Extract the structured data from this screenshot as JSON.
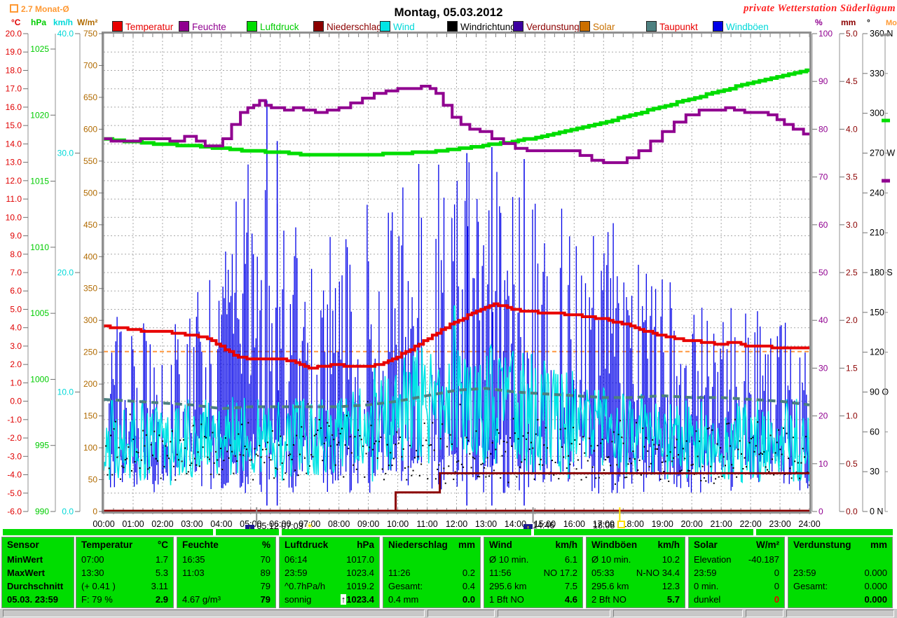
{
  "header": {
    "title": "Montag, 05.03.2012",
    "station": "private Wetterstation Süderlügum",
    "month_avg_label": "2.7 Monat-Ø",
    "month_avg_label_right": "Monat-Ø"
  },
  "axis_units": {
    "celsius": "°C",
    "hpa": "hPa",
    "kmh": "km/h",
    "wm2": "W/m²",
    "percent": "%",
    "mm": "mm",
    "degree": "°"
  },
  "legend": [
    {
      "label": "Temperatur",
      "text_color": "#e80000",
      "box_color": "#e80000"
    },
    {
      "label": "Feuchte",
      "text_color": "#900090",
      "box_color": "#900090"
    },
    {
      "label": "Luftdruck",
      "text_color": "#00cc00",
      "box_color": "#00dd00"
    },
    {
      "label": "Niederschlag",
      "text_color": "#8b0000",
      "box_color": "#8b0000"
    },
    {
      "label": "Wind",
      "text_color": "#00d8d8",
      "box_color": "#00e5e5"
    },
    {
      "label": "Windrichtung*",
      "text_color": "#000000",
      "box_color": "#000000"
    },
    {
      "label": "Verdunstung",
      "text_color": "#8b0000",
      "box_color": "#3c00a0"
    },
    {
      "label": "Solar",
      "text_color": "#c87000",
      "box_color": "#cc7000"
    },
    {
      "label": "Taupunkt",
      "text_color": "#e80000",
      "box_color": "#4d8080"
    },
    {
      "label": "Windböen",
      "text_color": "#00d8d8",
      "box_color": "#0000e8"
    }
  ],
  "astro": {
    "moonset_sunrise": "05:12 07:03",
    "moonrise": "14:46",
    "sunset": "18:08"
  },
  "chart_data": {
    "type": "line",
    "title": "Montag, 05.03.2012",
    "x_label": "Uhrzeit",
    "x_range_hours": [
      0,
      24
    ],
    "x_tick_labels": [
      "00:00",
      "01:00",
      "02:00",
      "03:00",
      "04:00",
      "05:00",
      "06:00",
      "07:00",
      "08:00",
      "09:00",
      "10:00",
      "11:00",
      "12:00",
      "13:00",
      "14:00",
      "15:00",
      "16:00",
      "17:00",
      "18:00",
      "19:00",
      "20:00",
      "21:00",
      "22:00",
      "23:00",
      "24:00"
    ],
    "grid": true,
    "axes": {
      "temperature_c": {
        "min": -6,
        "max": 20,
        "step": 1,
        "decimals": 1,
        "color": "#e00000"
      },
      "pressure_hpa": {
        "min": 990,
        "max": 1025,
        "step": 5,
        "decimals": 0,
        "color": "#00cc00"
      },
      "wind_kmh": {
        "min": 0,
        "max": 40,
        "step": 10,
        "decimals": 1,
        "color": "#00d8d8"
      },
      "solar_wm2": {
        "min": 0,
        "max": 750,
        "step": 50,
        "decimals": 0,
        "color": "#b06a00"
      },
      "humidity_pct": {
        "min": 0,
        "max": 100,
        "step": 10,
        "decimals": 0,
        "color": "#900090"
      },
      "rain_mm": {
        "min": 0,
        "max": 5,
        "step": 0.5,
        "decimals": 1,
        "color": "#8b0000"
      },
      "direction_deg": {
        "labels_top_down": [
          "360 N",
          "330",
          "300",
          "270 W",
          "240",
          "210",
          "180 S",
          "150",
          "120",
          "90 O",
          "60",
          "30",
          "0 N"
        ],
        "color": "#000000"
      }
    },
    "month_average_line": {
      "value": 2.7,
      "axis": "temperature_c",
      "color": "#ff9940"
    },
    "series": [
      {
        "name": "Temperatur",
        "unit": "°C",
        "color": "#e80000",
        "x": [
          0,
          0.5,
          1,
          1.5,
          2,
          2.5,
          3,
          3.5,
          4,
          4.5,
          5,
          5.5,
          6,
          6.5,
          7,
          7.5,
          8,
          8.5,
          9,
          9.5,
          10,
          10.5,
          11,
          11.5,
          12,
          12.5,
          13,
          13.3,
          13.6,
          14,
          14.5,
          15,
          15.5,
          16,
          16.5,
          17,
          17.5,
          18,
          18.5,
          19,
          19.5,
          20,
          20.5,
          21,
          21.5,
          22,
          22.5,
          23,
          23.5,
          24
        ],
        "values": [
          4.1,
          4.0,
          3.9,
          3.8,
          3.8,
          3.7,
          3.6,
          3.5,
          3.0,
          2.5,
          2.3,
          2.3,
          2.3,
          2.2,
          1.8,
          1.9,
          2.0,
          1.9,
          1.9,
          2.0,
          2.4,
          2.8,
          3.3,
          3.8,
          4.3,
          4.7,
          5.1,
          5.3,
          5.2,
          5.0,
          4.9,
          4.8,
          4.8,
          4.7,
          4.6,
          4.5,
          4.3,
          4.1,
          3.8,
          3.6,
          3.4,
          3.3,
          3.2,
          3.1,
          3.2,
          3.0,
          3.0,
          2.9,
          2.9,
          2.9
        ]
      },
      {
        "name": "Feuchte",
        "unit": "%",
        "color": "#900090",
        "x": [
          0,
          0.5,
          1,
          1.5,
          2,
          2.5,
          3,
          3.3,
          3.6,
          3.9,
          4.2,
          4.5,
          4.8,
          5,
          5.2,
          5.4,
          5.6,
          5.8,
          6,
          6.3,
          6.6,
          7,
          7.4,
          7.8,
          8.2,
          8.6,
          9,
          9.4,
          9.8,
          10.2,
          10.6,
          11,
          11.2,
          11.4,
          11.7,
          12,
          12.3,
          12.6,
          13,
          13.4,
          13.8,
          14.2,
          14.6,
          15,
          15.5,
          16,
          16.4,
          16.8,
          17.2,
          17.6,
          18,
          18.4,
          18.8,
          19.2,
          19.6,
          20,
          20.5,
          21,
          21.3,
          21.6,
          22,
          22.4,
          22.8,
          23,
          23.3,
          23.6,
          24
        ],
        "values": [
          78,
          77.5,
          77.5,
          78,
          78,
          77.5,
          78.5,
          77.5,
          76.5,
          76.5,
          78,
          81,
          83.5,
          84.5,
          85,
          86,
          85,
          84.5,
          84.5,
          84,
          84.5,
          84,
          83.5,
          84,
          84.5,
          85.5,
          86.5,
          87.5,
          88,
          88.5,
          88.5,
          89,
          88.5,
          87.5,
          85,
          82.5,
          81,
          80,
          79.5,
          78,
          77,
          76,
          75.5,
          75.5,
          75.5,
          75.5,
          74.5,
          73.5,
          73,
          73,
          74,
          75.5,
          77.5,
          79.5,
          81.5,
          83,
          84,
          84,
          84.5,
          84,
          83.5,
          83.5,
          83,
          82,
          81,
          80,
          79
        ]
      },
      {
        "name": "Luftdruck",
        "unit": "hPa",
        "color": "#00dd00",
        "x": [
          0,
          1,
          2,
          3,
          4,
          5,
          6,
          7,
          8,
          9,
          10,
          11,
          12,
          13,
          14,
          15,
          16,
          17,
          18,
          19,
          20,
          21,
          22,
          23,
          24
        ],
        "values": [
          1018.2,
          1018.0,
          1017.8,
          1017.7,
          1017.5,
          1017.3,
          1017.2,
          1017.0,
          1017.0,
          1017.0,
          1017.1,
          1017.2,
          1017.4,
          1017.7,
          1018.0,
          1018.4,
          1018.9,
          1019.4,
          1020.0,
          1020.6,
          1021.2,
          1021.8,
          1022.4,
          1022.9,
          1023.4
        ]
      },
      {
        "name": "Taupunkt",
        "unit": "°C",
        "color": "#4d8080",
        "style": "dashed",
        "x": [
          0,
          1,
          2,
          3,
          4,
          5,
          6,
          7,
          8,
          9,
          10,
          11,
          12,
          13,
          14,
          15,
          16,
          17,
          18,
          19,
          20,
          21,
          22,
          23,
          24
        ],
        "values": [
          0.1,
          0.0,
          -0.1,
          -0.2,
          -0.4,
          -0.3,
          -0.3,
          -0.3,
          -0.3,
          -0.2,
          0.0,
          0.3,
          0.6,
          0.7,
          0.5,
          0.4,
          0.3,
          0.2,
          0.2,
          0.3,
          0.2,
          0.2,
          0.1,
          0.0,
          -0.2
        ]
      },
      {
        "name": "Niederschlag",
        "unit": "mm",
        "color": "#8b0000",
        "render": "step",
        "points": [
          [
            0,
            0
          ],
          [
            9.93,
            0
          ],
          [
            9.93,
            0.2
          ],
          [
            11.43,
            0.2
          ],
          [
            11.43,
            0.4
          ],
          [
            24,
            0.4
          ]
        ]
      },
      {
        "name": "Wind",
        "unit": "km/h",
        "color": "#00e5e5",
        "render": "noisy",
        "hourly_mean": [
          6,
          6,
          5.5,
          6,
          6.5,
          6.5,
          6,
          6,
          6.5,
          7,
          8,
          9,
          9.5,
          9,
          8.5,
          8,
          7.5,
          7,
          6.5,
          6,
          6,
          5.5,
          6,
          6,
          6
        ],
        "noise_amp": 3.5,
        "max_event": {
          "hour": 11.93,
          "value": 17.2
        }
      },
      {
        "name": "Windböen",
        "unit": "km/h",
        "color": "#0000e8",
        "render": "spikes",
        "hourly_max": [
          16,
          17,
          15,
          18,
          22,
          30,
          26,
          22,
          24,
          26,
          28,
          30,
          30,
          29,
          30,
          27,
          25,
          26,
          22,
          20,
          18,
          17,
          18,
          16,
          15
        ],
        "max_event": {
          "hour": 5.55,
          "value": 34.4
        }
      },
      {
        "name": "Windrichtung",
        "unit": "°",
        "color": "#000000",
        "render": "dots",
        "mean_deg": 45,
        "spread_deg": 28
      },
      {
        "name": "Verdunstung",
        "unit": "mm",
        "color": "#3c00a0",
        "render": "flat",
        "value": 0
      }
    ]
  },
  "table": {
    "row_labels": [
      "Sensor",
      "MinWert",
      "MaxWert",
      "Durchschnitt",
      "05.03. 23:59"
    ],
    "columns": [
      {
        "name": "Temperatur",
        "unit": "°C",
        "rows": [
          [
            "07:00",
            "1.7"
          ],
          [
            "13:30",
            "5.3"
          ],
          [
            "(+ 0.41 )",
            "3.11"
          ],
          [
            "F: 79 %",
            "2.9"
          ]
        ]
      },
      {
        "name": "Feuchte",
        "unit": "%",
        "rows": [
          [
            "16:35",
            "70"
          ],
          [
            "11:03",
            "89"
          ],
          [
            "",
            "79"
          ],
          [
            "4.67 g/m³",
            "79"
          ]
        ]
      },
      {
        "name": "Luftdruck",
        "unit": "hPa",
        "rows": [
          [
            "06:14",
            "1017.0"
          ],
          [
            "23:59",
            "1023.4"
          ],
          [
            "^0.7hPa/h",
            "1019.2"
          ],
          [
            "sonnig",
            "↑1023.4"
          ]
        ]
      },
      {
        "name": "Niederschlag",
        "unit": "mm",
        "rows": [
          [
            "",
            ""
          ],
          [
            "11:26",
            "0.2"
          ],
          [
            "Gesamt:",
            "0.4"
          ],
          [
            "0.4 mm",
            "0.0"
          ]
        ]
      },
      {
        "name": "Wind",
        "unit": "km/h",
        "rows": [
          [
            "Ø 10 min.",
            "6.1"
          ],
          [
            "11:56",
            "NO 17.2"
          ],
          [
            "295.6 km",
            "7.5"
          ],
          [
            "1 Bft NO",
            "4.6"
          ]
        ]
      },
      {
        "name": "Windböen",
        "unit": "km/h",
        "rows": [
          [
            "Ø 10 min.",
            "10.2"
          ],
          [
            "05:33",
            "N-NO 34.4"
          ],
          [
            "295.6 km",
            "12.3"
          ],
          [
            "2 Bft NO",
            "5.7"
          ]
        ]
      },
      {
        "name": "Solar",
        "unit": "W/m²",
        "rows": [
          [
            "Elevation",
            "-40.187"
          ],
          [
            "23:59",
            "0"
          ],
          [
            "0 min.",
            "0"
          ],
          [
            "dunkel",
            "0"
          ]
        ],
        "last_value_red": true
      },
      {
        "name": "Verdunstung",
        "unit": "mm",
        "rows": [
          [
            "",
            ""
          ],
          [
            "23:59",
            "0.000"
          ],
          [
            "Gesamt:",
            "0.000"
          ],
          [
            "",
            "0.000"
          ]
        ]
      }
    ]
  }
}
